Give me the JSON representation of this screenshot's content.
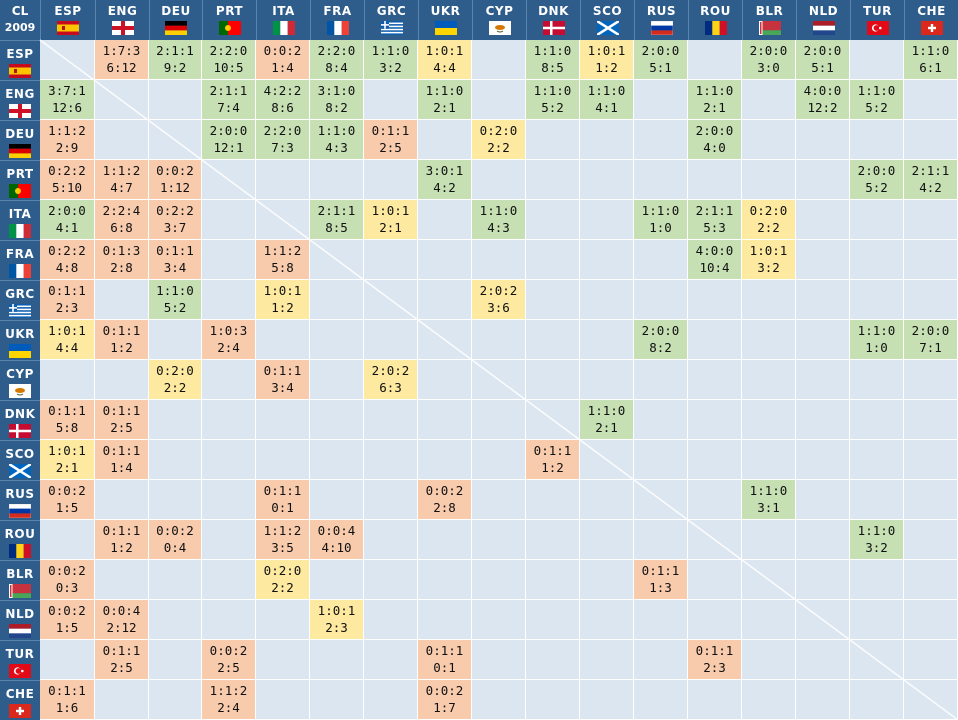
{
  "corner": {
    "line1": "CL",
    "line2": "2009"
  },
  "colors": {
    "header": "#2e5d8b",
    "empty": "#dce6f1",
    "win": "#c6e0b4",
    "draw": "#fde9a0",
    "loss": "#f8cbad"
  },
  "teams": [
    {
      "code": "ESP",
      "flag": "spain-flag"
    },
    {
      "code": "ENG",
      "flag": "england-flag"
    },
    {
      "code": "DEU",
      "flag": "germany-flag"
    },
    {
      "code": "PRT",
      "flag": "portugal-flag"
    },
    {
      "code": "ITA",
      "flag": "italy-flag"
    },
    {
      "code": "FRA",
      "flag": "france-flag"
    },
    {
      "code": "GRC",
      "flag": "greece-flag"
    },
    {
      "code": "UKR",
      "flag": "ukraine-flag"
    },
    {
      "code": "CYP",
      "flag": "cyprus-flag"
    },
    {
      "code": "DNK",
      "flag": "denmark-flag"
    },
    {
      "code": "SCO",
      "flag": "scotland-flag"
    },
    {
      "code": "RUS",
      "flag": "russia-flag"
    },
    {
      "code": "ROU",
      "flag": "romania-flag"
    },
    {
      "code": "BLR",
      "flag": "belarus-flag"
    },
    {
      "code": "NLD",
      "flag": "netherlands-flag"
    },
    {
      "code": "TUR",
      "flag": "turkey-flag"
    },
    {
      "code": "CHE",
      "flag": "switzerland-flag"
    }
  ],
  "cells": {
    "0": {
      "1": [
        "1:7:3",
        "6:12"
      ],
      "2": [
        "2:1:1",
        "9:2"
      ],
      "3": [
        "2:2:0",
        "10:5"
      ],
      "4": [
        "0:0:2",
        "1:4"
      ],
      "5": [
        "2:2:0",
        "8:4"
      ],
      "6": [
        "1:1:0",
        "3:2"
      ],
      "7": [
        "1:0:1",
        "4:4"
      ],
      "9": [
        "1:1:0",
        "8:5"
      ],
      "10": [
        "1:0:1",
        "1:2"
      ],
      "11": [
        "2:0:0",
        "5:1"
      ],
      "13": [
        "2:0:0",
        "3:0"
      ],
      "14": [
        "2:0:0",
        "5:1"
      ],
      "16": [
        "1:1:0",
        "6:1"
      ]
    },
    "1": {
      "0": [
        "3:7:1",
        "12:6"
      ],
      "3": [
        "2:1:1",
        "7:4"
      ],
      "4": [
        "4:2:2",
        "8:6"
      ],
      "5": [
        "3:1:0",
        "8:2"
      ],
      "7": [
        "1:1:0",
        "2:1"
      ],
      "9": [
        "1:1:0",
        "5:2"
      ],
      "10": [
        "1:1:0",
        "4:1"
      ],
      "12": [
        "1:1:0",
        "2:1"
      ],
      "14": [
        "4:0:0",
        "12:2"
      ],
      "15": [
        "1:1:0",
        "5:2"
      ]
    },
    "2": {
      "0": [
        "1:1:2",
        "2:9"
      ],
      "3": [
        "2:0:0",
        "12:1"
      ],
      "4": [
        "2:2:0",
        "7:3"
      ],
      "5": [
        "1:1:0",
        "4:3"
      ],
      "6": [
        "0:1:1",
        "2:5"
      ],
      "8": [
        "0:2:0",
        "2:2"
      ],
      "12": [
        "2:0:0",
        "4:0"
      ]
    },
    "3": {
      "0": [
        "0:2:2",
        "5:10"
      ],
      "1": [
        "1:1:2",
        "4:7"
      ],
      "2": [
        "0:0:2",
        "1:12"
      ],
      "7": [
        "3:0:1",
        "4:2"
      ],
      "15": [
        "2:0:0",
        "5:2"
      ],
      "16": [
        "2:1:1",
        "4:2"
      ]
    },
    "4": {
      "0": [
        "2:0:0",
        "4:1"
      ],
      "1": [
        "2:2:4",
        "6:8"
      ],
      "2": [
        "0:2:2",
        "3:7"
      ],
      "5": [
        "2:1:1",
        "8:5"
      ],
      "6": [
        "1:0:1",
        "2:1"
      ],
      "8": [
        "1:1:0",
        "4:3"
      ],
      "11": [
        "1:1:0",
        "1:0"
      ],
      "12": [
        "2:1:1",
        "5:3"
      ],
      "13": [
        "0:2:0",
        "2:2"
      ]
    },
    "5": {
      "0": [
        "0:2:2",
        "4:8"
      ],
      "1": [
        "0:1:3",
        "2:8"
      ],
      "2": [
        "0:1:1",
        "3:4"
      ],
      "4": [
        "1:1:2",
        "5:8"
      ],
      "12": [
        "4:0:0",
        "10:4"
      ],
      "13": [
        "1:0:1",
        "3:2"
      ]
    },
    "6": {
      "0": [
        "0:1:1",
        "2:3"
      ],
      "2": [
        "1:1:0",
        "5:2"
      ],
      "4": [
        "1:0:1",
        "1:2"
      ],
      "8": [
        "2:0:2",
        "3:6"
      ]
    },
    "7": {
      "0": [
        "1:0:1",
        "4:4"
      ],
      "1": [
        "0:1:1",
        "1:2"
      ],
      "3": [
        "1:0:3",
        "2:4"
      ],
      "11": [
        "2:0:0",
        "8:2"
      ],
      "15": [
        "1:1:0",
        "1:0"
      ],
      "16": [
        "2:0:0",
        "7:1"
      ]
    },
    "8": {
      "2": [
        "0:2:0",
        "2:2"
      ],
      "4": [
        "0:1:1",
        "3:4"
      ],
      "6": [
        "2:0:2",
        "6:3"
      ]
    },
    "9": {
      "0": [
        "0:1:1",
        "5:8"
      ],
      "1": [
        "0:1:1",
        "2:5"
      ],
      "10": [
        "1:1:0",
        "2:1"
      ]
    },
    "10": {
      "0": [
        "1:0:1",
        "2:1"
      ],
      "1": [
        "0:1:1",
        "1:4"
      ],
      "9": [
        "0:1:1",
        "1:2"
      ]
    },
    "11": {
      "0": [
        "0:0:2",
        "1:5"
      ],
      "4": [
        "0:1:1",
        "0:1"
      ],
      "7": [
        "0:0:2",
        "2:8"
      ],
      "13": [
        "1:1:0",
        "3:1"
      ]
    },
    "12": {
      "1": [
        "0:1:1",
        "1:2"
      ],
      "2": [
        "0:0:2",
        "0:4"
      ],
      "4": [
        "1:1:2",
        "3:5"
      ],
      "5": [
        "0:0:4",
        "4:10"
      ],
      "15": [
        "1:1:0",
        "3:2"
      ]
    },
    "13": {
      "0": [
        "0:0:2",
        "0:3"
      ],
      "4": [
        "0:2:0",
        "2:2"
      ],
      "11": [
        "0:1:1",
        "1:3"
      ]
    },
    "14": {
      "0": [
        "0:0:2",
        "1:5"
      ],
      "1": [
        "0:0:4",
        "2:12"
      ],
      "5": [
        "1:0:1",
        "2:3"
      ]
    },
    "15": {
      "1": [
        "0:1:1",
        "2:5"
      ],
      "3": [
        "0:0:2",
        "2:5"
      ],
      "7": [
        "0:1:1",
        "0:1"
      ],
      "12": [
        "0:1:1",
        "2:3"
      ]
    },
    "16": {
      "0": [
        "0:1:1",
        "1:6"
      ],
      "3": [
        "1:1:2",
        "2:4"
      ],
      "7": [
        "0:0:2",
        "1:7"
      ]
    }
  }
}
